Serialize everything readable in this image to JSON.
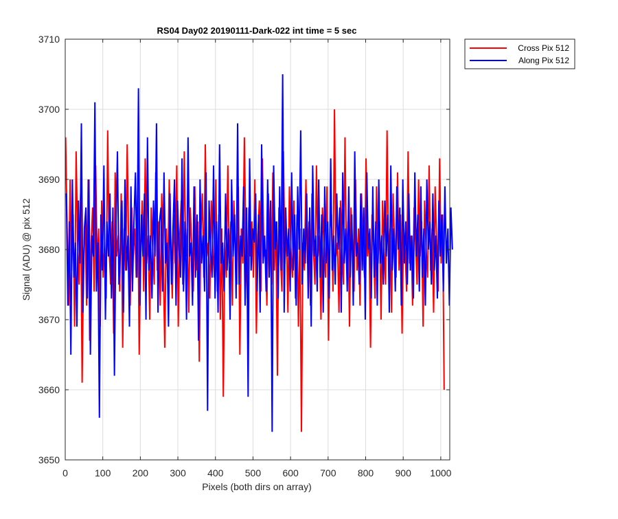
{
  "chart_data": {
    "type": "line",
    "title": "RS04 Day02 20190111-Dark-022 int time = 5 sec",
    "xlabel": "Pixels (both dirs on array)",
    "ylabel": "Signal (ADU) @ pix 512",
    "xlim": [
      0,
      1024
    ],
    "ylim": [
      3650,
      3710
    ],
    "xticks": [
      0,
      100,
      200,
      300,
      400,
      500,
      600,
      700,
      800,
      900,
      1000
    ],
    "yticks": [
      3650,
      3660,
      3670,
      3680,
      3690,
      3700,
      3710
    ],
    "grid": true,
    "legend_position": "outside-top-right",
    "series": [
      {
        "name": "Cross Pix 512",
        "color": "#ff0000",
        "x_start": 1,
        "x_step": 4,
        "values": [
          3696,
          3683,
          3672,
          3690,
          3677,
          3685,
          3669,
          3694,
          3681,
          3675,
          3688,
          3661,
          3679,
          3684,
          3672,
          3690,
          3667,
          3681,
          3686,
          3674,
          3692,
          3678,
          3683,
          3669,
          3687,
          3676,
          3681,
          3673,
          3697,
          3680,
          3675,
          3684,
          3668,
          3691,
          3679,
          3682,
          3674,
          3688,
          3666,
          3683,
          3677,
          3695,
          3680,
          3672,
          3686,
          3679,
          3683,
          3676,
          3689,
          3665,
          3681,
          3687,
          3674,
          3693,
          3678,
          3682,
          3670,
          3686,
          3680,
          3675,
          3691,
          3677,
          3684,
          3672,
          3688,
          3679,
          3666,
          3683,
          3676,
          3690,
          3681,
          3673,
          3685,
          3678,
          3692,
          3669,
          3682,
          3687,
          3675,
          3694,
          3679,
          3683,
          3671,
          3686,
          3680,
          3674,
          3689,
          3677,
          3684,
          3664,
          3682,
          3688,
          3676,
          3695,
          3679,
          3681,
          3673,
          3687,
          3680,
          3676,
          3690,
          3674,
          3685,
          3670,
          3683,
          3659,
          3681,
          3676,
          3692,
          3678,
          3684,
          3672,
          3687,
          3680,
          3675,
          3689,
          3665,
          3683,
          3678,
          3696,
          3681,
          3673,
          3686,
          3679,
          3684,
          3676,
          3690,
          3668,
          3682,
          3687,
          3674,
          3693,
          3679,
          3680,
          3672,
          3688,
          3681,
          3675,
          3691,
          3677,
          3684,
          3662,
          3686,
          3679,
          3674,
          3694,
          3678,
          3683,
          3671,
          3689,
          3680,
          3676,
          3687,
          3673,
          3685,
          3669,
          3683,
          3654,
          3681,
          3677,
          3690,
          3678,
          3684,
          3672,
          3688,
          3680,
          3675,
          3692,
          3679,
          3682,
          3670,
          3686,
          3681,
          3676,
          3689,
          3667,
          3683,
          3685,
          3674,
          3700,
          3679,
          3681,
          3671,
          3687,
          3680,
          3675,
          3696,
          3678,
          3684,
          3669,
          3686,
          3681,
          3674,
          3690,
          3677,
          3683,
          3672,
          3688,
          3680,
          3676,
          3693,
          3679,
          3682,
          3666,
          3685,
          3681,
          3673,
          3689,
          3678,
          3684,
          3670,
          3687,
          3680,
          3675,
          3697,
          3679,
          3683,
          3671,
          3688,
          3681,
          3676,
          3691,
          3677,
          3685,
          3668,
          3683,
          3680,
          3674,
          3694,
          3678,
          3682,
          3672,
          3686,
          3681,
          3675,
          3690,
          3679,
          3684,
          3669,
          3687,
          3680,
          3676,
          3692,
          3677,
          3683,
          3671,
          3689,
          3681,
          3674,
          3693,
          3678,
          3685,
          3660
        ]
      },
      {
        "name": "Along Pix 512",
        "color": "#0000ff",
        "x_start": 3,
        "x_step": 4,
        "values": [
          3688,
          3672,
          3684,
          3665,
          3690,
          3676,
          3681,
          3669,
          3687,
          3678,
          3698,
          3671,
          3683,
          3686,
          3673,
          3690,
          3665,
          3682,
          3679,
          3701,
          3674,
          3681,
          3656,
          3685,
          3677,
          3692,
          3670,
          3684,
          3679,
          3688,
          3673,
          3686,
          3662,
          3683,
          3694,
          3675,
          3680,
          3687,
          3671,
          3690,
          3677,
          3682,
          3669,
          3689,
          3674,
          3684,
          3691,
          3676,
          3703,
          3672,
          3685,
          3679,
          3688,
          3670,
          3696,
          3677,
          3682,
          3673,
          3687,
          3679,
          3698,
          3671,
          3684,
          3686,
          3674,
          3691,
          3678,
          3681,
          3669,
          3688,
          3675,
          3683,
          3690,
          3672,
          3687,
          3680,
          3676,
          3693,
          3674,
          3684,
          3670,
          3696,
          3679,
          3681,
          3672,
          3689,
          3676,
          3685,
          3667,
          3690,
          3678,
          3682,
          3674,
          3691,
          3657,
          3687,
          3680,
          3676,
          3692,
          3673,
          3684,
          3671,
          3695,
          3678,
          3681,
          3674,
          3688,
          3677,
          3683,
          3670,
          3690,
          3679,
          3685,
          3673,
          3698,
          3675,
          3682,
          3679,
          3689,
          3672,
          3686,
          3659,
          3693,
          3677,
          3683,
          3681,
          3688,
          3674,
          3685,
          3671,
          3695,
          3678,
          3682,
          3674,
          3690,
          3676,
          3687,
          3654,
          3692,
          3680,
          3684,
          3673,
          3689,
          3677,
          3705,
          3671,
          3686,
          3679,
          3683,
          3674,
          3691,
          3677,
          3685,
          3672,
          3689,
          3680,
          3697,
          3675,
          3683,
          3678,
          3688,
          3673,
          3686,
          3669,
          3692,
          3679,
          3682,
          3674,
          3690,
          3676,
          3685,
          3671,
          3689,
          3678,
          3684,
          3673,
          3693,
          3677,
          3682,
          3675,
          3688,
          3680,
          3686,
          3671,
          3691,
          3678,
          3683,
          3674,
          3689,
          3676,
          3685,
          3672,
          3694,
          3679,
          3681,
          3675,
          3688,
          3677,
          3686,
          3670,
          3691,
          3680,
          3683,
          3673,
          3689,
          3676,
          3684,
          3672,
          3690,
          3678,
          3682,
          3675,
          3687,
          3679,
          3685,
          3671,
          3692,
          3677,
          3683,
          3674,
          3689,
          3680,
          3686,
          3672,
          3690,
          3678,
          3684,
          3675,
          3688,
          3677,
          3682,
          3673,
          3691,
          3679,
          3685,
          3674,
          3689,
          3676,
          3683,
          3672,
          3690,
          3680,
          3684,
          3675,
          3688,
          3677,
          3682,
          3673,
          3687,
          3679,
          3685,
          3674,
          3689,
          3678,
          3683,
          3672,
          3686,
          3680
        ]
      }
    ]
  }
}
